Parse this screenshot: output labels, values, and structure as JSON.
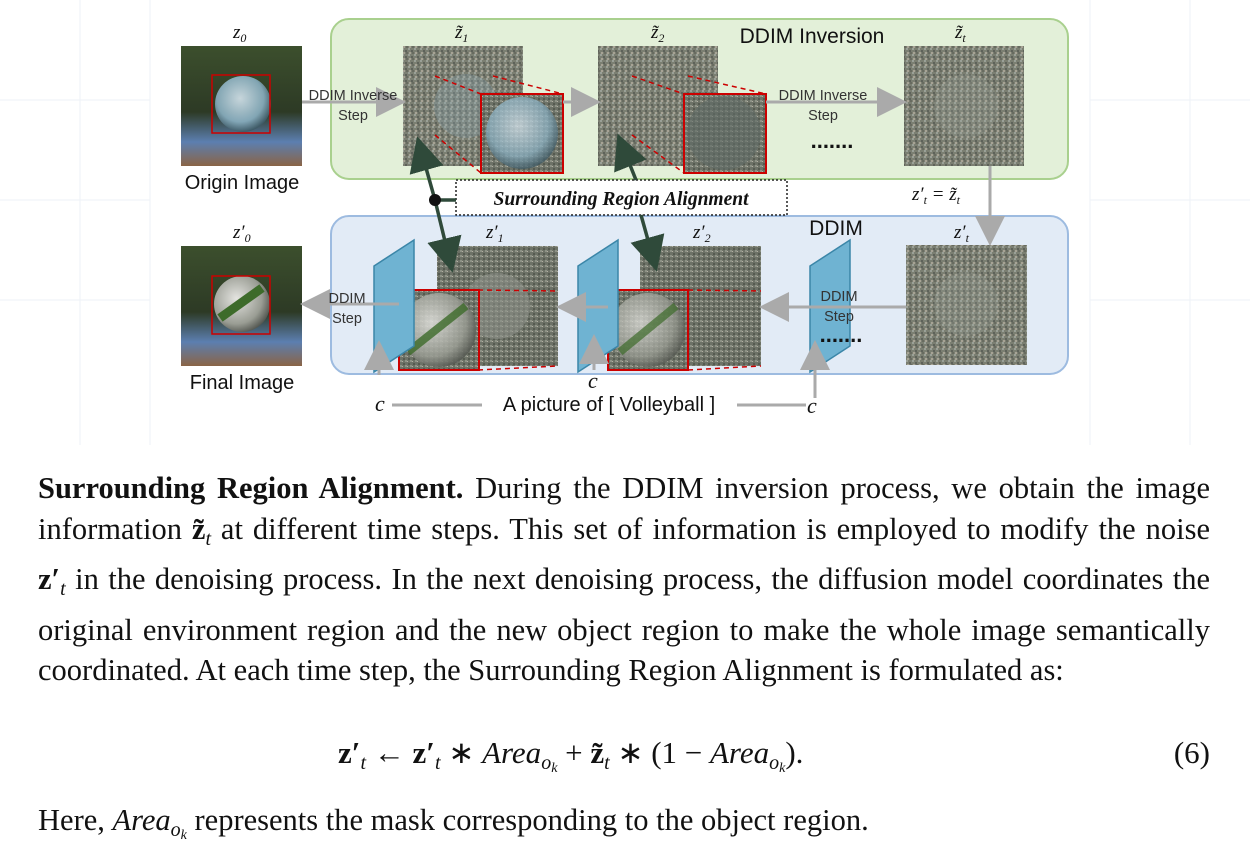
{
  "figure": {
    "top_panel_title": "DDIM Inversion",
    "bottom_panel_title": "DDIM",
    "origin_image_label": "Origin Image",
    "final_image_label": "Final Image",
    "inverse_step_label_1a": "DDIM Inverse",
    "inverse_step_label_1b": "Step",
    "inverse_step_label_2a": "DDIM Inverse",
    "inverse_step_label_2b": "Step",
    "ddim_step_label_1a": "DDIM",
    "ddim_step_label_1b": "Step",
    "ddim_step_label_2a": "DDIM",
    "ddim_step_label_2b": "Step",
    "dots_top": ".......",
    "dots_bottom": ".......",
    "alignment_box_label": "Surrounding Region Alignment",
    "prompt_text": "A picture of [ Volleyball ]",
    "condition_symbol": "c",
    "latent_labels": {
      "z0": "z",
      "z0_sub": "0",
      "zt1": "z̃",
      "zt1_sub": "1",
      "zt2": "z̃",
      "zt2_sub": "2",
      "ztt": "z̃",
      "ztt_sub": "t",
      "zp0": "z′",
      "zp0_sub": "0",
      "zp1": "z′",
      "zp1_sub": "1",
      "zp2": "z′",
      "zp2_sub": "2",
      "zpt": "z′",
      "zpt_sub": "t",
      "equality_lhs": "z′",
      "equality_sub": "t",
      "equality_mid": " = z̃",
      "equality_sub2": "t"
    }
  },
  "paragraph": {
    "heading": "Surrounding Region Alignment.",
    "text_1": " During the DDIM inversion process, we obtain the image information ",
    "sym_zt": "z̃",
    "sym_zt_sub": "t",
    "text_2": " at different time steps. This set of information is employed to modify the noise ",
    "sym_zp": "z′",
    "sym_zp_sub": "t",
    "text_3": " in the denoising process. In the next denoising process, the diffusion model coordinates the original environment region and the new object region to make the whole image semantically coordinated. At each time step, the Surrounding Region Alignment is formulated as:"
  },
  "equation": {
    "lhs": "z′",
    "lhs_sub": "t",
    "arrow": " ← ",
    "t1": "z′",
    "t1_sub": "t",
    "op1": " ∗ ",
    "area": "Area",
    "area_sub": "o",
    "area_subsub": "k",
    "plus": " + ",
    "t2": "z̃",
    "t2_sub": "t",
    "op2": " ∗ (1 − ",
    "area2": "Area",
    "area2_sub": "o",
    "area2_subsub": "k",
    "close": ").",
    "number": "(6)"
  },
  "closing": {
    "text_1": "Here, ",
    "area": "Area",
    "area_sub": "o",
    "area_subsub": "k",
    "text_2": " represents the mask corresponding to the object region."
  },
  "colors": {
    "top_panel_fill": "#e3f0d9",
    "top_panel_stroke": "#a9d08e",
    "bottom_panel_fill": "#e2ebf6",
    "bottom_panel_stroke": "#9dbbe0",
    "crop_red": "#cc0000",
    "arrow_gray": "#aaaaaa",
    "align_arrow": "#2f4a3a",
    "unet_blue": "#6fb3d2"
  }
}
